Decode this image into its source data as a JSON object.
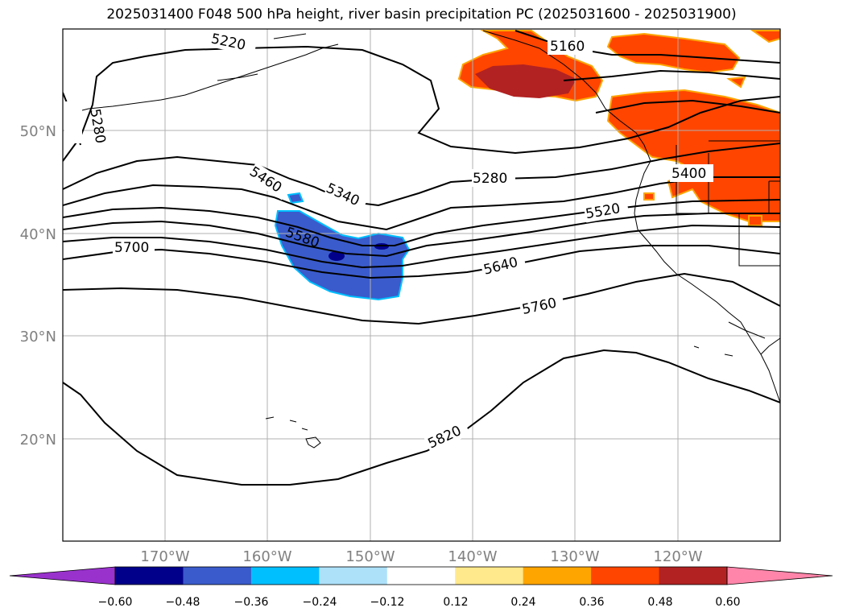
{
  "title": "2025031400 F048 500 hPa height, river basin precipitation PC (2025031600 - 2025031900)",
  "map": {
    "lat_labels": [
      "50°N",
      "40°N",
      "30°N",
      "20°N"
    ],
    "lon_labels": [
      "170°W",
      "160°W",
      "150°W",
      "140°W",
      "130°W",
      "120°W"
    ],
    "label_color": "#808080"
  },
  "contour_labels": [
    "5160",
    "5220",
    "5280",
    "5280",
    "5340",
    "5400",
    "5460",
    "5520",
    "5580",
    "5640",
    "5700",
    "5760",
    "5820"
  ],
  "colorbar": {
    "ticks": [
      "−0.60",
      "−0.48",
      "−0.36",
      "−0.24",
      "−0.12",
      "0.12",
      "0.24",
      "0.36",
      "0.48",
      "0.60"
    ],
    "colors": [
      "#9932CC",
      "#00008B",
      "#3A5BCB",
      "#00BFFF",
      "#ADE1FA",
      "#FFFFFF",
      "#FFE98C",
      "#FFA500",
      "#FF4500",
      "#B22222",
      "#FF85AA"
    ]
  }
}
